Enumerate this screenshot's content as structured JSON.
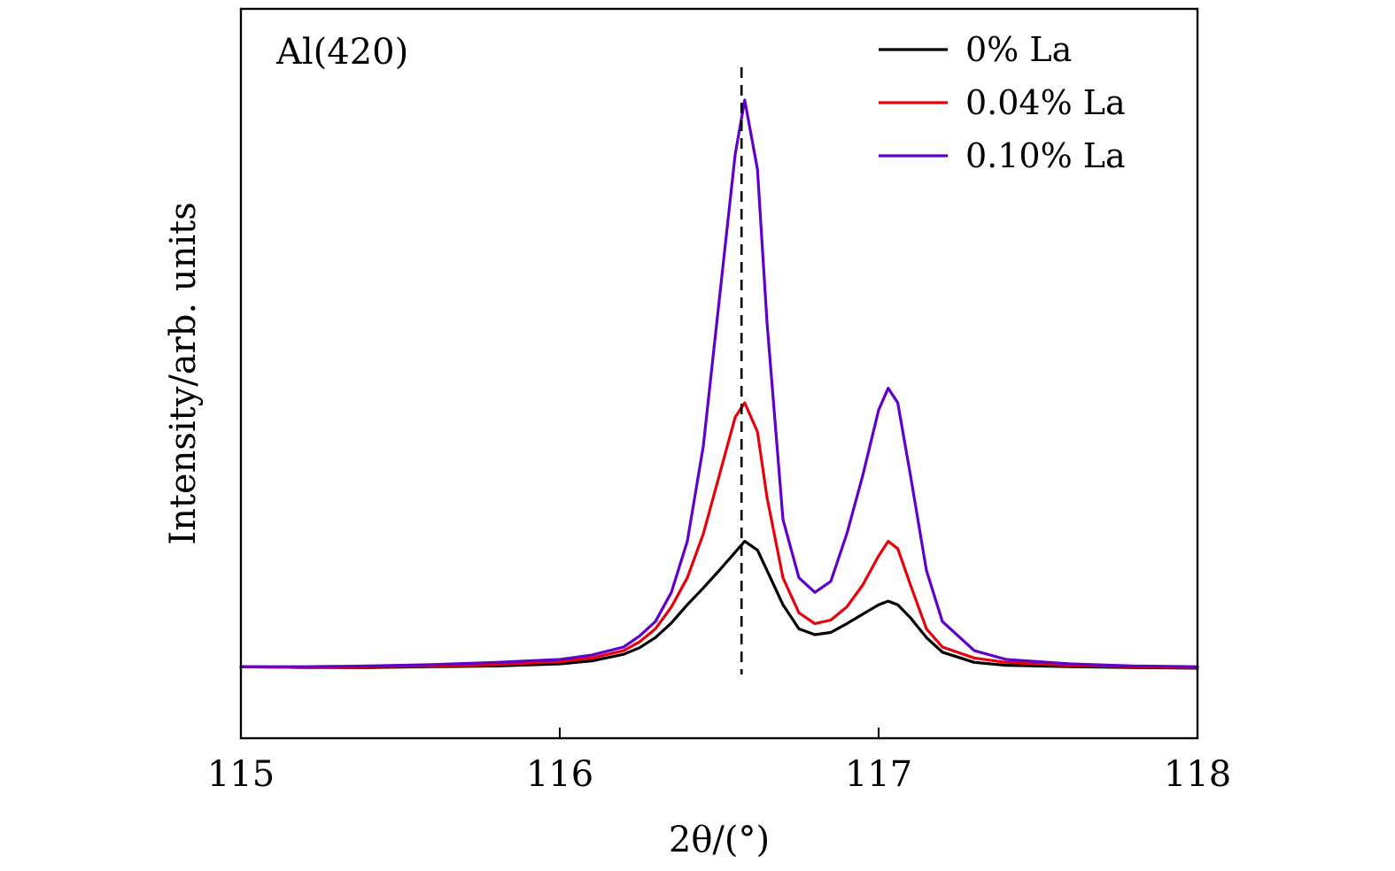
{
  "chart_data": {
    "type": "line",
    "title": "",
    "xlabel": "2θ/(°)",
    "ylabel": "Intensity/arb. units",
    "xlim": [
      115,
      118
    ],
    "ylim": [
      0,
      1
    ],
    "x_ticks": [
      115,
      116,
      117,
      118
    ],
    "x_tick_labels": [
      "115",
      "116",
      "117",
      "118"
    ],
    "y_ticks_shown": false,
    "grid": false,
    "legend_position": "top-right",
    "annotation": "Al(420)",
    "reference_line_x": 116.57,
    "series": [
      {
        "name": "0% La",
        "color": "#000000",
        "x": [
          115.0,
          115.2,
          115.4,
          115.6,
          115.8,
          116.0,
          116.1,
          116.2,
          116.25,
          116.3,
          116.35,
          116.4,
          116.45,
          116.5,
          116.55,
          116.58,
          116.62,
          116.65,
          116.7,
          116.75,
          116.8,
          116.85,
          116.9,
          116.95,
          117.0,
          117.03,
          117.06,
          117.1,
          117.15,
          117.2,
          117.3,
          117.4,
          117.6,
          117.8,
          118.0
        ],
        "y": [
          0.098,
          0.097,
          0.097,
          0.098,
          0.099,
          0.102,
          0.106,
          0.115,
          0.124,
          0.138,
          0.158,
          0.183,
          0.206,
          0.23,
          0.255,
          0.27,
          0.258,
          0.23,
          0.183,
          0.15,
          0.142,
          0.145,
          0.157,
          0.17,
          0.183,
          0.188,
          0.183,
          0.165,
          0.138,
          0.118,
          0.104,
          0.1,
          0.098,
          0.097,
          0.096
        ]
      },
      {
        "name": "0.04% La",
        "color": "#e8000b",
        "x": [
          115.0,
          115.2,
          115.4,
          115.6,
          115.8,
          116.0,
          116.1,
          116.2,
          116.25,
          116.3,
          116.35,
          116.4,
          116.45,
          116.5,
          116.55,
          116.58,
          116.62,
          116.65,
          116.7,
          116.75,
          116.8,
          116.85,
          116.9,
          116.95,
          117.0,
          117.03,
          117.06,
          117.1,
          117.15,
          117.2,
          117.3,
          117.4,
          117.6,
          117.8,
          118.0
        ],
        "y": [
          0.098,
          0.097,
          0.098,
          0.099,
          0.101,
          0.105,
          0.11,
          0.12,
          0.132,
          0.15,
          0.18,
          0.22,
          0.28,
          0.36,
          0.44,
          0.46,
          0.42,
          0.33,
          0.22,
          0.172,
          0.157,
          0.162,
          0.18,
          0.21,
          0.25,
          0.27,
          0.26,
          0.21,
          0.15,
          0.125,
          0.11,
          0.104,
          0.1,
          0.098,
          0.097
        ]
      },
      {
        "name": "0.10% La",
        "color": "#6000c8",
        "x": [
          115.0,
          115.2,
          115.4,
          115.6,
          115.8,
          116.0,
          116.1,
          116.2,
          116.25,
          116.3,
          116.35,
          116.4,
          116.45,
          116.5,
          116.55,
          116.58,
          116.62,
          116.65,
          116.7,
          116.75,
          116.8,
          116.85,
          116.9,
          116.95,
          117.0,
          117.03,
          117.06,
          117.1,
          117.15,
          117.2,
          117.3,
          117.4,
          117.6,
          117.8,
          118.0
        ],
        "y": [
          0.098,
          0.098,
          0.099,
          0.101,
          0.104,
          0.108,
          0.114,
          0.125,
          0.14,
          0.16,
          0.2,
          0.27,
          0.4,
          0.6,
          0.8,
          0.875,
          0.78,
          0.57,
          0.3,
          0.22,
          0.2,
          0.215,
          0.28,
          0.36,
          0.45,
          0.48,
          0.46,
          0.36,
          0.23,
          0.16,
          0.12,
          0.108,
          0.102,
          0.099,
          0.098
        ]
      }
    ]
  }
}
